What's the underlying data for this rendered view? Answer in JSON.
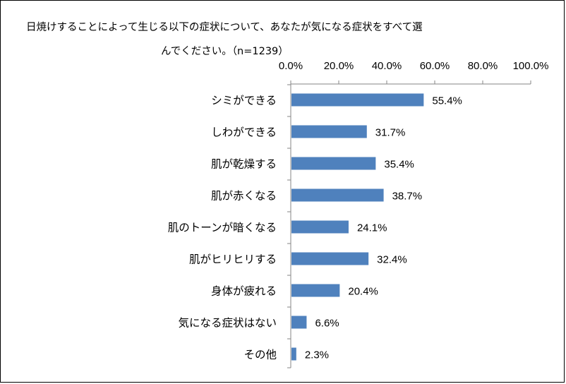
{
  "chart_data": {
    "type": "bar",
    "orientation": "horizontal",
    "title_lines": [
      "日焼けすることによって生じる以下の症状について、あなたが気になる症状をすべて選",
      "んでください。（n=1239）"
    ],
    "categories": [
      "シミができる",
      "しわができる",
      "肌が乾燥する",
      "肌が赤くなる",
      "肌のトーンが暗くなる",
      "肌がヒリヒリする",
      "身体が疲れる",
      "気になる症状はない",
      "その他"
    ],
    "values": [
      55.4,
      31.7,
      35.4,
      38.7,
      24.1,
      32.4,
      20.4,
      6.6,
      2.3
    ],
    "value_labels": [
      "55.4%",
      "31.7%",
      "35.4%",
      "38.7%",
      "24.1%",
      "32.4%",
      "20.4%",
      "6.6%",
      "2.3%"
    ],
    "xlim": [
      0,
      100
    ],
    "x_ticks": [
      0,
      20,
      40,
      60,
      80,
      100
    ],
    "x_tick_labels": [
      "0.0%",
      "20.0%",
      "40.0%",
      "60.0%",
      "80.0%",
      "100.0%"
    ],
    "x_axis_position": "top",
    "grid": false,
    "legend": "none",
    "bar_color": "#4f81bd"
  }
}
